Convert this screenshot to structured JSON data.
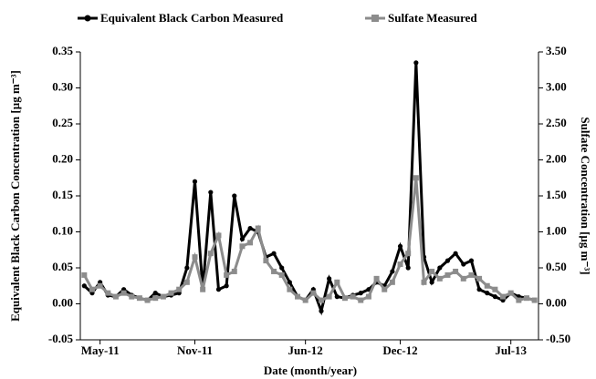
{
  "chart_data": {
    "type": "line",
    "x_label": "Date (month/year)",
    "y_label": "Equivalent Black Carbon Concentration [µg m⁻³]",
    "y2_label": "Sulfate Concentration [µg m⁻³]",
    "legend": "top",
    "categories": [
      null,
      null,
      "May-11",
      null,
      null,
      null,
      null,
      null,
      null,
      null,
      null,
      null,
      null,
      null,
      "Nov-11",
      null,
      null,
      null,
      null,
      null,
      null,
      null,
      null,
      null,
      null,
      null,
      null,
      null,
      "Jun-12",
      null,
      null,
      null,
      null,
      null,
      null,
      null,
      null,
      null,
      null,
      null,
      "Dec-12",
      null,
      null,
      null,
      null,
      null,
      null,
      null,
      null,
      null,
      null,
      null,
      null,
      null,
      "Jul-13",
      null,
      null,
      null
    ],
    "ylim": [
      -0.05,
      0.35
    ],
    "yticks": [
      -0.05,
      {
        "value": 0,
        "label": "0.00"
      },
      0.05,
      {
        "value": 0.1,
        "label": "0.10"
      },
      0.15,
      {
        "value": 0.2,
        "label": "0.20"
      },
      0.25,
      {
        "value": 0.3,
        "label": "0.30"
      },
      0.35
    ],
    "y2lim": [
      -0.5,
      3.5
    ],
    "y2ticks": [
      {
        "value": -0.5,
        "label": "-0.50"
      },
      {
        "value": 0,
        "label": "0.00"
      },
      {
        "value": 0.5,
        "label": "0.50"
      },
      {
        "value": 1,
        "label": "1.00"
      },
      {
        "value": 1.5,
        "label": "1.50"
      },
      {
        "value": 2,
        "label": "2.00"
      },
      {
        "value": 2.5,
        "label": "2.50"
      },
      {
        "value": 3,
        "label": "3.00"
      },
      {
        "value": 3.5,
        "label": "3.50"
      }
    ],
    "series": [
      {
        "name": "Equivalent Black Carbon Measured",
        "color": "#000000",
        "marker": "circle",
        "axis": "y",
        "values": [
          0.025,
          0.015,
          0.03,
          0.012,
          0.01,
          0.02,
          0.012,
          0.008,
          0.005,
          0.015,
          0.01,
          0.012,
          0.015,
          0.05,
          0.17,
          0.02,
          0.155,
          0.02,
          0.025,
          0.15,
          0.09,
          0.105,
          0.1,
          0.065,
          0.07,
          0.05,
          0.03,
          0.01,
          0.005,
          0.02,
          -0.01,
          0.035,
          0.01,
          0.008,
          0.012,
          0.015,
          0.02,
          0.03,
          0.025,
          0.045,
          0.08,
          0.05,
          0.335,
          0.065,
          0.03,
          0.05,
          0.06,
          0.07,
          0.055,
          0.06,
          0.02,
          0.015,
          0.01,
          0.005,
          0.015,
          0.01,
          0.008,
          0.005
        ]
      },
      {
        "name": "Sulfate Measured",
        "color": "#8c8c8c",
        "marker": "square",
        "axis": "y2",
        "values": [
          0.4,
          0.2,
          0.25,
          0.15,
          0.1,
          0.15,
          0.1,
          0.08,
          0.05,
          0.08,
          0.1,
          0.15,
          0.2,
          0.3,
          0.65,
          0.2,
          0.7,
          0.95,
          0.4,
          0.45,
          0.8,
          0.85,
          1.05,
          0.6,
          0.45,
          0.4,
          0.2,
          0.1,
          0.05,
          0.15,
          0.05,
          0.1,
          0.3,
          0.08,
          0.1,
          0.05,
          0.1,
          0.35,
          0.2,
          0.3,
          0.55,
          0.7,
          1.75,
          0.3,
          0.45,
          0.35,
          0.4,
          0.45,
          0.35,
          0.4,
          0.35,
          0.25,
          0.2,
          0.1,
          0.15,
          0.05,
          0.08,
          0.05
        ]
      }
    ]
  }
}
